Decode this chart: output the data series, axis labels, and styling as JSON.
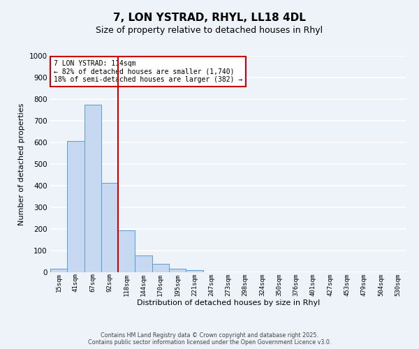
{
  "title": "7, LON YSTRAD, RHYL, LL18 4DL",
  "subtitle": "Size of property relative to detached houses in Rhyl",
  "xlabel": "Distribution of detached houses by size in Rhyl",
  "ylabel": "Number of detached properties",
  "bar_labels": [
    "15sqm",
    "41sqm",
    "67sqm",
    "92sqm",
    "118sqm",
    "144sqm",
    "170sqm",
    "195sqm",
    "221sqm",
    "247sqm",
    "273sqm",
    "298sqm",
    "324sqm",
    "350sqm",
    "376sqm",
    "401sqm",
    "427sqm",
    "453sqm",
    "479sqm",
    "504sqm",
    "530sqm"
  ],
  "bar_values": [
    15,
    608,
    773,
    413,
    193,
    78,
    40,
    16,
    10,
    0,
    0,
    0,
    0,
    0,
    0,
    0,
    0,
    0,
    0,
    0,
    0
  ],
  "bar_color": "#c6d9f0",
  "bar_edge_color": "#5b9bd5",
  "ylim": [
    0,
    1000
  ],
  "yticks": [
    0,
    100,
    200,
    300,
    400,
    500,
    600,
    700,
    800,
    900,
    1000
  ],
  "vline_index": 4,
  "vline_color": "#cc0000",
  "annotation_title": "7 LON YSTRAD: 114sqm",
  "annotation_line1": "← 82% of detached houses are smaller (1,740)",
  "annotation_line2": "18% of semi-detached houses are larger (382) →",
  "annotation_box_color": "#cc0000",
  "footer_line1": "Contains HM Land Registry data © Crown copyright and database right 2025.",
  "footer_line2": "Contains public sector information licensed under the Open Government Licence v3.0.",
  "background_color": "#eef2f9",
  "grid_color": "#ffffff",
  "title_fontsize": 11,
  "subtitle_fontsize": 9,
  "ylabel_fontsize": 8,
  "xlabel_fontsize": 8
}
